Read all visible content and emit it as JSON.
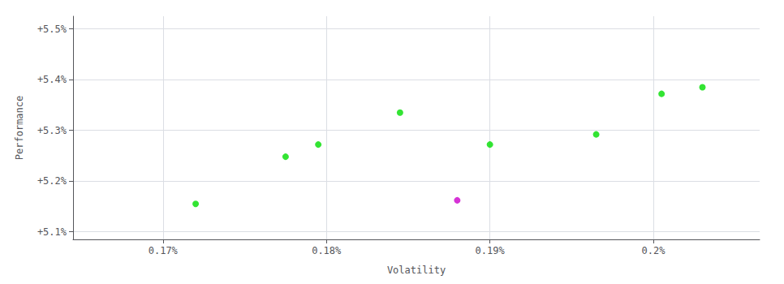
{
  "chart_data": {
    "type": "scatter",
    "xlabel": "Volatility",
    "ylabel": "Performance",
    "xlim": [
      0.001645,
      0.002065
    ],
    "ylim": [
      0.05085,
      0.05525
    ],
    "xticks": [
      {
        "value": 0.0017,
        "label": "0.17%"
      },
      {
        "value": 0.0018,
        "label": "0.18%"
      },
      {
        "value": 0.0019,
        "label": "0.19%"
      },
      {
        "value": 0.002,
        "label": "0.2%"
      }
    ],
    "yticks": [
      {
        "value": 0.051,
        "label": "+5.1%"
      },
      {
        "value": 0.052,
        "label": "+5.2%"
      },
      {
        "value": 0.053,
        "label": "+5.3%"
      },
      {
        "value": 0.054,
        "label": "+5.4%"
      },
      {
        "value": 0.055,
        "label": "+5.5%"
      }
    ],
    "grid": true,
    "marker": "circle",
    "series": [
      {
        "color": "#00dd00",
        "x": [
          0.00172,
          0.001775,
          0.001795,
          0.001845,
          0.0019,
          0.001965,
          0.002005,
          0.00203
        ],
        "values": [
          0.05155,
          0.05248,
          0.05272,
          0.05335,
          0.05272,
          0.05292,
          0.05372,
          0.05385
        ]
      },
      {
        "color": "#cc00cc",
        "x": [
          0.00188
        ],
        "values": [
          0.05162
        ]
      }
    ]
  }
}
